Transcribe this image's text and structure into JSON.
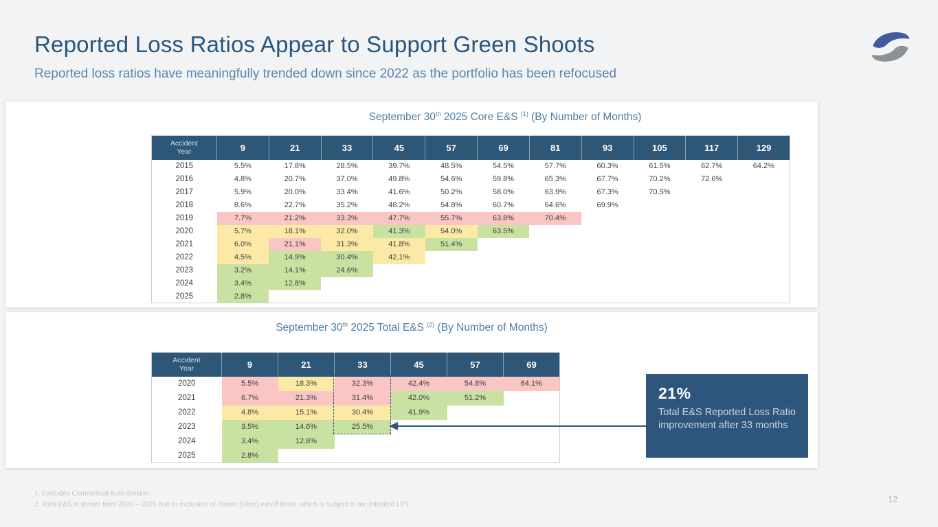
{
  "slide": {
    "title": "Reported Loss Ratios Appear to Support Green Shoots",
    "subtitle": "Reported loss ratios have meaningfully trended down since 2022 as the portfolio has been refocused",
    "side_label": [
      "Reported",
      "Loss Ratios"
    ],
    "page_number": "12"
  },
  "colors": {
    "title": "#28567e",
    "subtitle": "#5c86ab",
    "header_navy": "#2e5677",
    "callout_navy": "#2e567c",
    "pink": "#f9c6c4",
    "yellow": "#fce9a6",
    "green": "#c9e2a2",
    "logo_blue": "#42599f",
    "logo_gray": "#8d9194"
  },
  "tables": [
    {
      "title": {
        "pre": "September 30",
        "sup1": "th",
        "mid": " 2025 Core E&S ",
        "sup2": "(1)",
        "post": " (By Number of Months)"
      },
      "row_header": [
        "Accident",
        "Year"
      ],
      "columns": [
        "9",
        "21",
        "33",
        "45",
        "57",
        "69",
        "81",
        "93",
        "105",
        "117",
        "129"
      ],
      "rows": [
        {
          "year": "2015",
          "cells": [
            [
              "5.5%",
              "w"
            ],
            [
              "17.8%",
              "w"
            ],
            [
              "28.5%",
              "w"
            ],
            [
              "39.7%",
              "w"
            ],
            [
              "48.5%",
              "w"
            ],
            [
              "54.5%",
              "w"
            ],
            [
              "57.7%",
              "w"
            ],
            [
              "60.3%",
              "w"
            ],
            [
              "61.5%",
              "w"
            ],
            [
              "62.7%",
              "w"
            ],
            [
              "64.2%",
              "w"
            ]
          ]
        },
        {
          "year": "2016",
          "cells": [
            [
              "4.8%",
              "w"
            ],
            [
              "20.7%",
              "w"
            ],
            [
              "37.0%",
              "w"
            ],
            [
              "49.8%",
              "w"
            ],
            [
              "54.6%",
              "w"
            ],
            [
              "59.8%",
              "w"
            ],
            [
              "65.3%",
              "w"
            ],
            [
              "67.7%",
              "w"
            ],
            [
              "70.2%",
              "w"
            ],
            [
              "72.6%",
              "w"
            ]
          ]
        },
        {
          "year": "2017",
          "cells": [
            [
              "5.9%",
              "w"
            ],
            [
              "20.0%",
              "w"
            ],
            [
              "33.4%",
              "w"
            ],
            [
              "41.6%",
              "w"
            ],
            [
              "50.2%",
              "w"
            ],
            [
              "58.0%",
              "w"
            ],
            [
              "63.9%",
              "w"
            ],
            [
              "67.3%",
              "w"
            ],
            [
              "70.5%",
              "w"
            ]
          ]
        },
        {
          "year": "2018",
          "cells": [
            [
              "8.6%",
              "w"
            ],
            [
              "22.7%",
              "w"
            ],
            [
              "35.2%",
              "w"
            ],
            [
              "48.2%",
              "w"
            ],
            [
              "54.8%",
              "w"
            ],
            [
              "60.7%",
              "w"
            ],
            [
              "64.6%",
              "w"
            ],
            [
              "69.9%",
              "w"
            ]
          ]
        },
        {
          "year": "2019",
          "cells": [
            [
              "7.7%",
              "p"
            ],
            [
              "21.2%",
              "p"
            ],
            [
              "33.3%",
              "p"
            ],
            [
              "47.7%",
              "p"
            ],
            [
              "55.7%",
              "p"
            ],
            [
              "63.8%",
              "p"
            ],
            [
              "70.4%",
              "p"
            ]
          ]
        },
        {
          "year": "2020",
          "cells": [
            [
              "5.7%",
              "y"
            ],
            [
              "18.1%",
              "y"
            ],
            [
              "32.0%",
              "y"
            ],
            [
              "41.3%",
              "g"
            ],
            [
              "54.0%",
              "y"
            ],
            [
              "63.5%",
              "g"
            ]
          ]
        },
        {
          "year": "2021",
          "cells": [
            [
              "6.0%",
              "y"
            ],
            [
              "21.1%",
              "p"
            ],
            [
              "31.3%",
              "y"
            ],
            [
              "41.8%",
              "y"
            ],
            [
              "51.4%",
              "g"
            ]
          ]
        },
        {
          "year": "2022",
          "cells": [
            [
              "4.5%",
              "y"
            ],
            [
              "14.9%",
              "g"
            ],
            [
              "30.4%",
              "g"
            ],
            [
              "42.1%",
              "y"
            ]
          ]
        },
        {
          "year": "2023",
          "cells": [
            [
              "3.2%",
              "g"
            ],
            [
              "14.1%",
              "g"
            ],
            [
              "24.6%",
              "g"
            ]
          ]
        },
        {
          "year": "2024",
          "cells": [
            [
              "3.4%",
              "g"
            ],
            [
              "12.8%",
              "g"
            ]
          ]
        },
        {
          "year": "2025",
          "cells": [
            [
              "2.8%",
              "g"
            ]
          ]
        }
      ]
    },
    {
      "title": {
        "pre": "September 30",
        "sup1": "th",
        "mid": " 2025 Total E&S ",
        "sup2": "(2)",
        "post": " (By Number of Months)"
      },
      "row_header": [
        "Accident",
        "Year"
      ],
      "columns": [
        "9",
        "21",
        "33",
        "45",
        "57",
        "69"
      ],
      "rows": [
        {
          "year": "2020",
          "cells": [
            [
              "5.5%",
              "p"
            ],
            [
              "18.3%",
              "y"
            ],
            [
              "32.3%",
              "p"
            ],
            [
              "42.4%",
              "p"
            ],
            [
              "54.8%",
              "p"
            ],
            [
              "64.1%",
              "p"
            ]
          ]
        },
        {
          "year": "2021",
          "cells": [
            [
              "6.7%",
              "p"
            ],
            [
              "21.3%",
              "p"
            ],
            [
              "31.4%",
              "p"
            ],
            [
              "42.0%",
              "g"
            ],
            [
              "51.2%",
              "g"
            ]
          ]
        },
        {
          "year": "2022",
          "cells": [
            [
              "4.8%",
              "y"
            ],
            [
              "15.1%",
              "y"
            ],
            [
              "30.4%",
              "y"
            ],
            [
              "41.9%",
              "g"
            ]
          ]
        },
        {
          "year": "2023",
          "cells": [
            [
              "3.5%",
              "g"
            ],
            [
              "14.6%",
              "g"
            ],
            [
              "25.5%",
              "g"
            ]
          ]
        },
        {
          "year": "2024",
          "cells": [
            [
              "3.4%",
              "g"
            ],
            [
              "12.8%",
              "g"
            ]
          ]
        },
        {
          "year": "2025",
          "cells": [
            [
              "2.8%",
              "g"
            ]
          ]
        }
      ],
      "highlight": {
        "column": "33",
        "rows": [
          "2020",
          "2021",
          "2022",
          "2023"
        ]
      }
    }
  ],
  "callout": {
    "value": "21%",
    "text": "Total E&S Reported Loss Ratio improvement after 33 months"
  },
  "footnotes": [
    "1.  Excludes Commercial Auto division.",
    "2.  Total E&S is shown from 2020 – 2025 due to exclusion of Raiser (Uber) runoff block, which is subject to an unlimited LPT."
  ]
}
